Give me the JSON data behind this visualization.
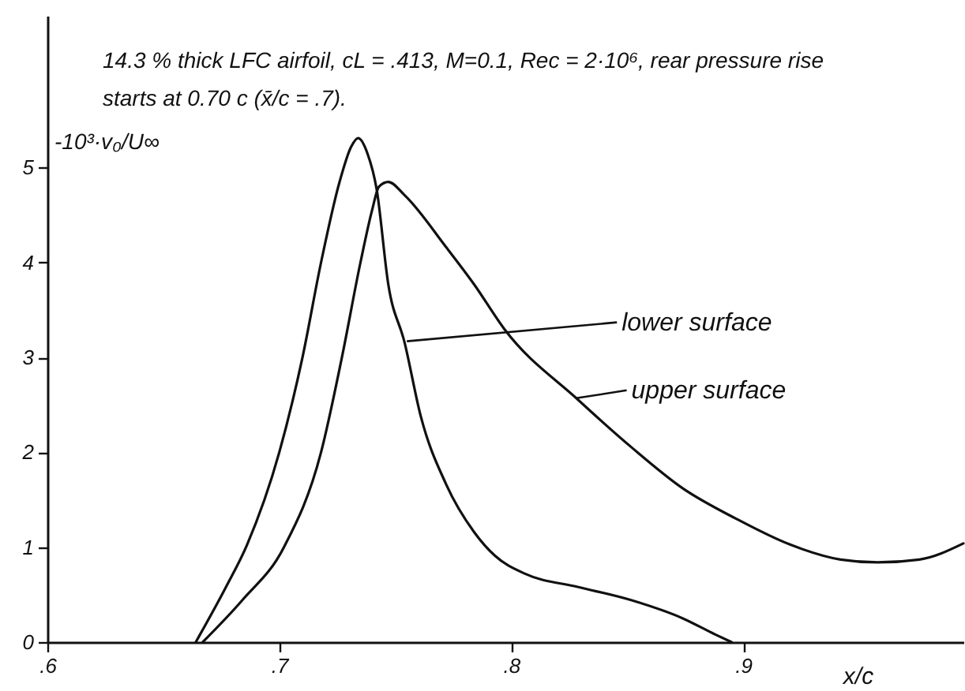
{
  "chart_data": {
    "type": "line",
    "title": "14.3 % thick LFC airfoil, cL = .413, M=0.1, Rec = 2·10⁶, rear pressure rise\nstarts at 0.70 c (x̄/c = .7).",
    "xlabel": "x/c",
    "ylabel": "-10³·v₀/U∞",
    "xlim": [
      0.6,
      0.995
    ],
    "ylim": [
      0,
      6.6
    ],
    "xticks": [
      {
        "value": 0.6,
        "label": ".6"
      },
      {
        "value": 0.7,
        "label": ".7"
      },
      {
        "value": 0.8,
        "label": ".8"
      },
      {
        "value": 0.9,
        "label": ".9"
      }
    ],
    "yticks": [
      0,
      1,
      2,
      3,
      4,
      5
    ],
    "grid": false,
    "marker": "none",
    "line_style": "solid",
    "series": [
      {
        "color": "#111111",
        "x": [
          0.664,
          0.677,
          0.686,
          0.7,
          0.71,
          0.718,
          0.726,
          0.731,
          0.734,
          0.738,
          0.742,
          0.747,
          0.754,
          0.761,
          0.772,
          0.784,
          0.793,
          0.806,
          0.829,
          0.852,
          0.874,
          0.888,
          0.895
        ],
        "values": [
          0,
          0.58,
          1.02,
          2.0,
          3.0,
          4.0,
          4.85,
          5.22,
          5.31,
          5.15,
          4.77,
          3.77,
          3.16,
          2.38,
          1.66,
          1.16,
          0.91,
          0.72,
          0.58,
          0.44,
          0.25,
          0.08,
          0
        ]
      },
      {
        "color": "#111111",
        "x": [
          0.667,
          0.684,
          0.702,
          0.718,
          0.727,
          0.735,
          0.74,
          0.743,
          0.747,
          0.754,
          0.772,
          0.784,
          0.797,
          0.829,
          0.852,
          0.874,
          0.897,
          0.92,
          0.942,
          0.958,
          0.976,
          0.995
        ],
        "values": [
          0,
          0.44,
          1.0,
          2.0,
          3.0,
          4.0,
          4.55,
          4.8,
          4.85,
          4.71,
          4.16,
          3.77,
          3.3,
          2.55,
          2.05,
          1.62,
          1.3,
          1.03,
          0.87,
          0.84,
          0.87,
          1.04
        ]
      }
    ],
    "annotations": [
      {
        "text": "lower surface",
        "x": 0.755,
        "y": 3.17
      },
      {
        "text": "upper surface",
        "x": 0.828,
        "y": 2.57
      }
    ]
  }
}
